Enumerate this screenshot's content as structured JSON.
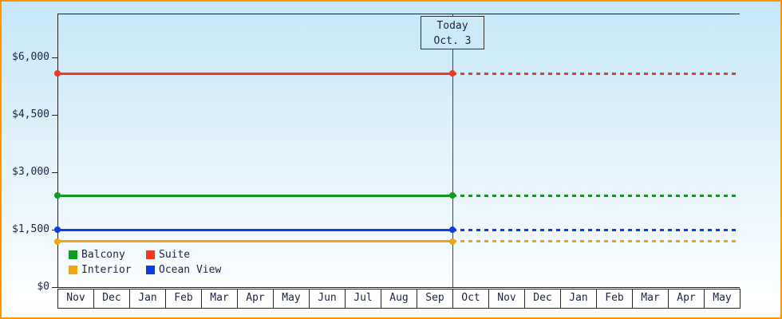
{
  "chart_data": {
    "type": "line",
    "title": "",
    "description": "Cruise cabin price history by category with projected (dotted) prices after today",
    "today": {
      "line1": "Today",
      "line2": "Oct. 3",
      "month_boundary_index": 11
    },
    "y_axis": {
      "ticks": [
        {
          "label": "$6,000",
          "value": 6000
        },
        {
          "label": "$4,500",
          "value": 4500
        },
        {
          "label": "$3,000",
          "value": 3000
        },
        {
          "label": "$1,500",
          "value": 1500
        },
        {
          "label": "$0",
          "value": 0
        }
      ],
      "ylim": [
        0,
        7100
      ],
      "unit": "USD",
      "grid": false
    },
    "x_axis": {
      "months": [
        "Nov",
        "Dec",
        "Jan",
        "Feb",
        "Mar",
        "Apr",
        "May",
        "Jun",
        "Jul",
        "Aug",
        "Sep",
        "Oct",
        "Nov",
        "Dec",
        "Jan",
        "Feb",
        "Mar",
        "Apr",
        "May"
      ]
    },
    "series": [
      {
        "name": "Suite",
        "color": "#ee3b1e",
        "value": 5580,
        "style_after_today": "dotted"
      },
      {
        "name": "Balcony",
        "color": "#109a1e",
        "value": 2390,
        "style_after_today": "dotted"
      },
      {
        "name": "Ocean View",
        "color": "#0a3de8",
        "value": 1490,
        "style_after_today": "dotted"
      },
      {
        "name": "Interior",
        "color": "#efa512",
        "value": 1190,
        "style_after_today": "dotted"
      }
    ],
    "legend": {
      "position": "bottom-left",
      "items": [
        {
          "label": "Balcony",
          "color": "#109a1e"
        },
        {
          "label": "Suite",
          "color": "#ee3b1e"
        },
        {
          "label": "Interior",
          "color": "#efa512"
        },
        {
          "label": "Ocean View",
          "color": "#0a3de8"
        }
      ]
    },
    "colors": {
      "frame_border": "#ff9600",
      "axis": "#222222",
      "today_line": "#444444",
      "background_top": "#c7e8f8",
      "background_bottom": "#ffffff",
      "text": "#1c2340"
    }
  }
}
